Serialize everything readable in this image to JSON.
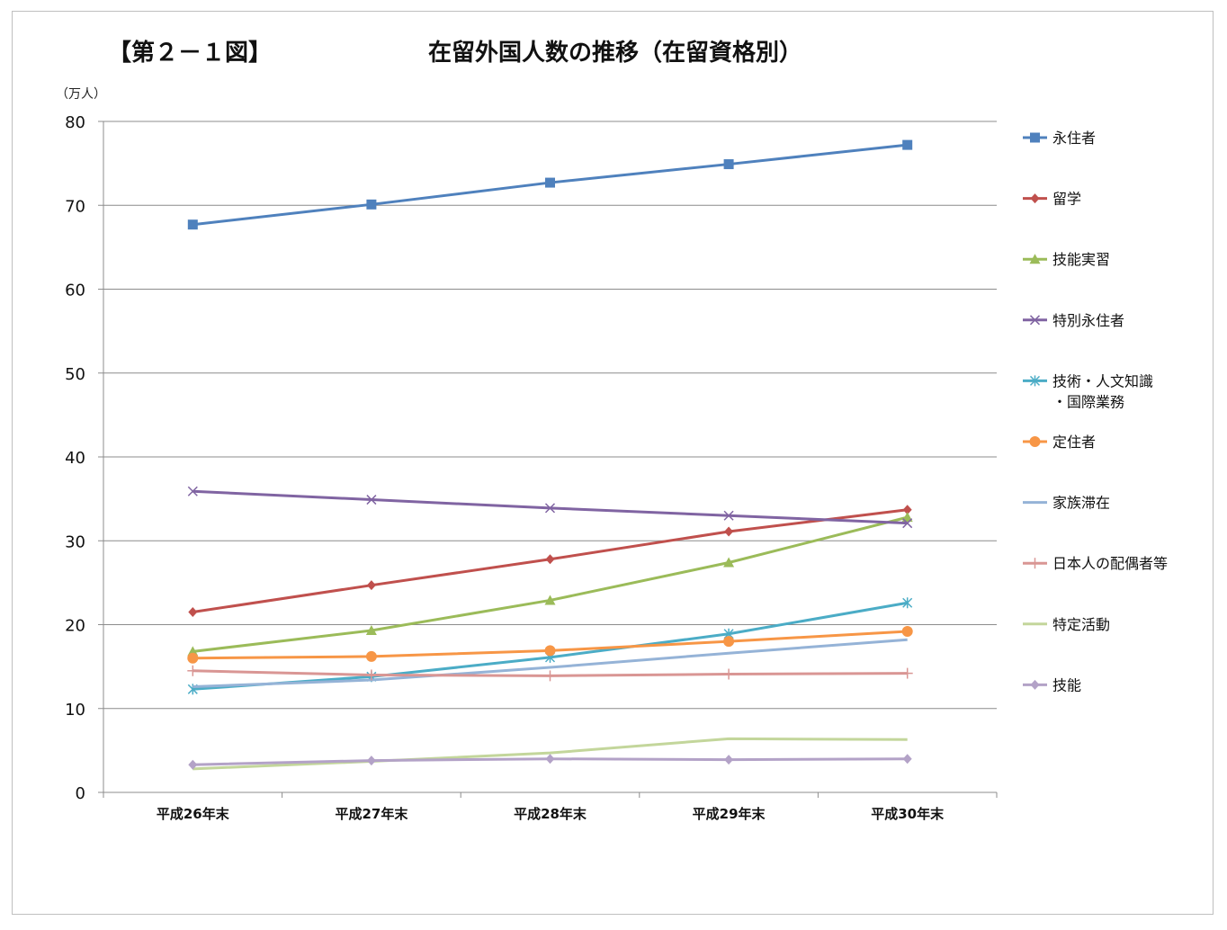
{
  "header": {
    "figure_label": "【第２－１図】",
    "title": "在留外国人数の推移（在留資格別）",
    "unit": "（万人）"
  },
  "chart_data": {
    "type": "line",
    "title": "在留外国人数の推移（在留資格別）",
    "ylabel": "（万人）",
    "xlabel": "",
    "ylim": [
      0,
      80
    ],
    "yticks": [
      0,
      10,
      20,
      30,
      40,
      50,
      60,
      70,
      80
    ],
    "grid": true,
    "legend_position": "right",
    "categories": [
      "平成26年末",
      "平成27年末",
      "平成28年末",
      "平成29年末",
      "平成30年末"
    ],
    "series": [
      {
        "name": "永住者",
        "color": "#4f81bd",
        "marker": "square",
        "values": [
          67.7,
          70.1,
          72.7,
          74.9,
          77.2
        ]
      },
      {
        "name": "留学",
        "color": "#c0504d",
        "marker": "diamond",
        "values": [
          21.5,
          24.7,
          27.8,
          31.1,
          33.7
        ]
      },
      {
        "name": "技能実習",
        "color": "#9bbb59",
        "marker": "triangle",
        "values": [
          16.8,
          19.3,
          22.9,
          27.4,
          32.8
        ]
      },
      {
        "name": "特別永住者",
        "color": "#8064a2",
        "marker": "x",
        "values": [
          35.9,
          34.9,
          33.9,
          33.0,
          32.1
        ]
      },
      {
        "name": "技術・人文知識・国際業務",
        "name_lines": [
          "技術・人文知識",
          "・国際業務"
        ],
        "color": "#4bacc6",
        "marker": "star",
        "values": [
          12.3,
          13.8,
          16.1,
          18.9,
          22.6
        ]
      },
      {
        "name": "定住者",
        "color": "#f79646",
        "marker": "circle",
        "values": [
          16.0,
          16.2,
          16.9,
          18.0,
          19.2
        ]
      },
      {
        "name": "家族滞在",
        "color": "#95b3d7",
        "marker": "none",
        "values": [
          12.6,
          13.4,
          14.9,
          16.6,
          18.2
        ]
      },
      {
        "name": "日本人の配偶者等",
        "color": "#d99694",
        "marker": "plus",
        "values": [
          14.5,
          14.0,
          13.9,
          14.1,
          14.2
        ]
      },
      {
        "name": "特定活動",
        "color": "#c3d69b",
        "marker": "none",
        "values": [
          2.8,
          3.7,
          4.7,
          6.4,
          6.3
        ]
      },
      {
        "name": "技能",
        "color": "#b3a2c7",
        "marker": "diamond",
        "values": [
          3.3,
          3.8,
          4.0,
          3.9,
          4.0
        ]
      }
    ]
  }
}
